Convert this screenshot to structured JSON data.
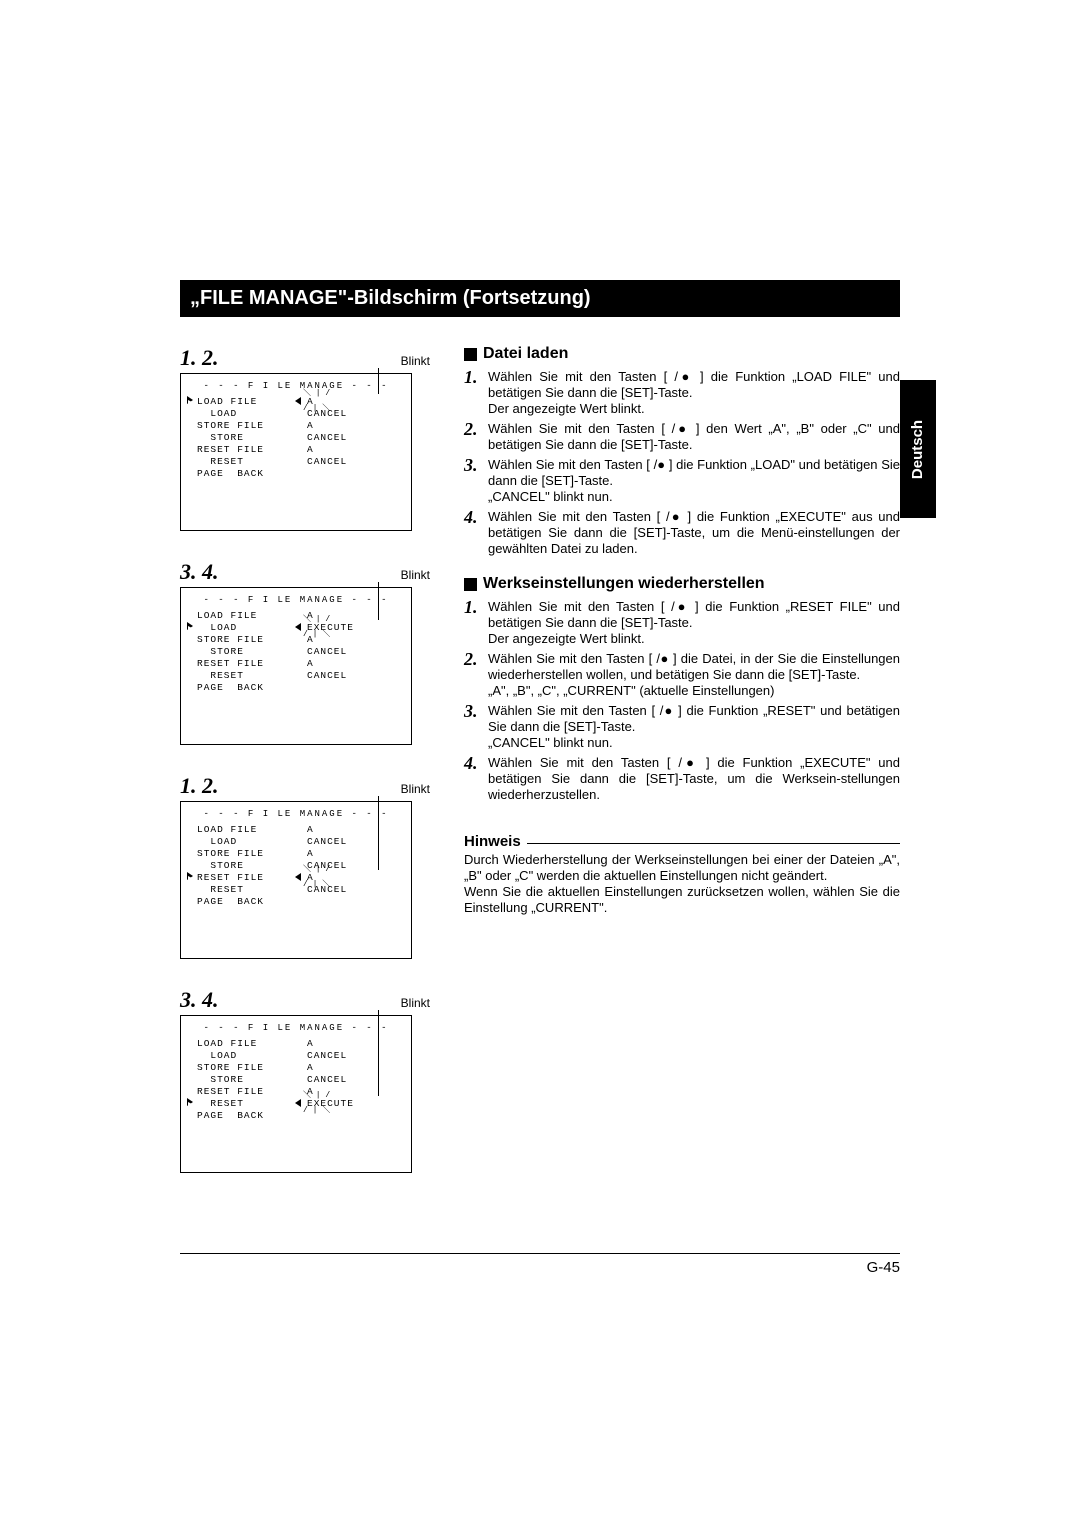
{
  "title": "„FILE MANAGE\"-Bildschirm (Fortsetzung)",
  "blinkt_label": "Blinkt",
  "language_tab": "Deutsch",
  "page_number": "G-45",
  "step_groups": [
    {
      "nums": "1. 2.",
      "highlight_row": 0,
      "blink_target": "val_a_top",
      "rows": [
        {
          "ptr": "▷",
          "left": "LOAD FILE",
          "right": "A"
        },
        {
          "ptr": "",
          "left": "  LOAD",
          "right": "CANCEL"
        },
        {
          "ptr": "",
          "left": "STORE FILE",
          "right": "A"
        },
        {
          "ptr": "",
          "left": "  STORE",
          "right": "CANCEL"
        },
        {
          "ptr": "",
          "left": "RESET FILE",
          "right": "A"
        },
        {
          "ptr": "",
          "left": "  RESET",
          "right": "CANCEL"
        },
        {
          "ptr": "",
          "left": "PAGE  BACK",
          "right": ""
        }
      ]
    },
    {
      "nums": "3. 4.",
      "highlight_row": 1,
      "rows": [
        {
          "ptr": "",
          "left": "LOAD FILE",
          "right": "A"
        },
        {
          "ptr": "▷",
          "left": "  LOAD",
          "right": "EXECUTE"
        },
        {
          "ptr": "",
          "left": "STORE FILE",
          "right": "A"
        },
        {
          "ptr": "",
          "left": "  STORE",
          "right": "CANCEL"
        },
        {
          "ptr": "",
          "left": "RESET FILE",
          "right": "A"
        },
        {
          "ptr": "",
          "left": "  RESET",
          "right": "CANCEL"
        },
        {
          "ptr": "",
          "left": "PAGE  BACK",
          "right": ""
        }
      ]
    },
    {
      "nums": "1. 2.",
      "highlight_row": 4,
      "rows": [
        {
          "ptr": "",
          "left": "LOAD FILE",
          "right": "A"
        },
        {
          "ptr": "",
          "left": "  LOAD",
          "right": "CANCEL"
        },
        {
          "ptr": "",
          "left": "STORE FILE",
          "right": "A"
        },
        {
          "ptr": "",
          "left": "  STORE",
          "right": "CANCEL"
        },
        {
          "ptr": "▷",
          "left": "RESET FILE",
          "right": "A"
        },
        {
          "ptr": "",
          "left": "  RESET",
          "right": "CANCEL"
        },
        {
          "ptr": "",
          "left": "PAGE  BACK",
          "right": ""
        }
      ]
    },
    {
      "nums": "3. 4.",
      "highlight_row": 5,
      "rows": [
        {
          "ptr": "",
          "left": "LOAD FILE",
          "right": "A"
        },
        {
          "ptr": "",
          "left": "  LOAD",
          "right": "CANCEL"
        },
        {
          "ptr": "",
          "left": "STORE FILE",
          "right": "A"
        },
        {
          "ptr": "",
          "left": "  STORE",
          "right": "CANCEL"
        },
        {
          "ptr": "",
          "left": "RESET FILE",
          "right": "A"
        },
        {
          "ptr": "▷",
          "left": "  RESET",
          "right": "EXECUTE"
        },
        {
          "ptr": "",
          "left": "PAGE  BACK",
          "right": ""
        }
      ]
    }
  ],
  "osd_title": "- - -  F I LE  MANAGE  - - -",
  "sections": [
    {
      "heading": "Datei laden",
      "items": [
        {
          "n": "1.",
          "t": "Wählen Sie mit den Tasten [   /● ] die Funktion „LOAD FILE\" und betätigen Sie dann die [SET]-Taste.<br>Der angezeigte Wert blinkt."
        },
        {
          "n": "2.",
          "t": "Wählen Sie mit den Tasten [   /● ] den Wert „A\", „B\" oder „C\" und betätigen Sie dann die [SET]-Taste."
        },
        {
          "n": "3.",
          "t": "Wählen Sie mit den Tasten [   /● ] die Funktion „LOAD\" und betätigen Sie dann die [SET]-Taste.<br>„CANCEL\" blinkt nun."
        },
        {
          "n": "4.",
          "t": "Wählen Sie mit den Tasten [   /● ] die Funktion „EXECUTE\" aus und betätigen Sie dann die [SET]-Taste, um die Menü-einstellungen der gewählten Datei zu laden."
        }
      ]
    },
    {
      "heading": "Werkseinstellungen wiederherstellen",
      "items": [
        {
          "n": "1.",
          "t": "Wählen Sie mit den Tasten [   /● ] die Funktion „RESET FILE\" und betätigen Sie dann die [SET]-Taste.<br>Der angezeigte Wert blinkt."
        },
        {
          "n": "2.",
          "t": "Wählen Sie mit den Tasten [   /● ] die Datei, in der Sie die Einstellungen wiederherstellen wollen, und betätigen Sie dann die [SET]-Taste.<br>„A\", „B\", „C\", „CURRENT\" (aktuelle Einstellungen)"
        },
        {
          "n": "3.",
          "t": "Wählen Sie mit den Tasten [   /● ] die Funktion „RESET\" und betätigen Sie dann die [SET]-Taste.<br>„CANCEL\" blinkt nun."
        },
        {
          "n": "4.",
          "t": "Wählen Sie mit den Tasten [   /● ] die Funktion „EXECUTE\" und betätigen Sie dann die [SET]-Taste, um die Werksein-stellungen wiederherzustellen."
        }
      ]
    }
  ],
  "hinweis": {
    "heading": "Hinweis",
    "body": "Durch Wiederherstellung der Werkseinstellungen bei einer der Dateien „A\", „B\" oder „C\" werden die aktuellen Einstellungen nicht geändert.<br>Wenn Sie die aktuellen Einstellungen zurücksetzen wollen, wählen Sie die Einstellung „CURRENT\"."
  },
  "colors": {
    "bg": "#ffffff",
    "fg": "#000000"
  }
}
